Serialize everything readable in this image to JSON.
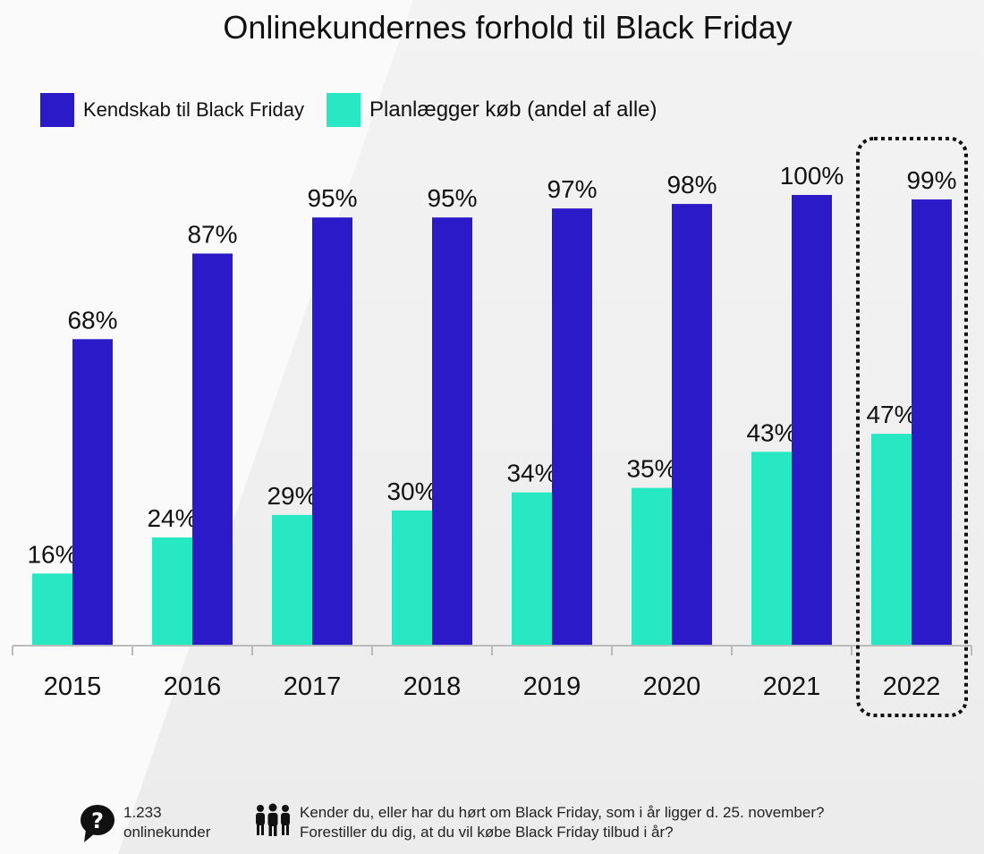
{
  "title": "Onlinekundernes forhold til Black Friday",
  "colors": {
    "series1": "#2a1ac8",
    "series2": "#27e8c2",
    "axis": "#bbbbbb",
    "highlight": "#111111"
  },
  "chart_data": {
    "type": "bar",
    "categories": [
      "2015",
      "2016",
      "2017",
      "2018",
      "2019",
      "2020",
      "2021",
      "2022"
    ],
    "series": [
      {
        "name": "Planlægger køb (andel af alle)",
        "values": [
          16,
          24,
          29,
          30,
          34,
          35,
          43,
          47
        ],
        "labels": [
          "16%",
          "24%",
          "29%",
          "30%",
          "34%",
          "35%",
          "43%",
          "47%"
        ]
      },
      {
        "name": "Kendskab til Black Friday",
        "values": [
          68,
          87,
          95,
          95,
          97,
          98,
          100,
          99
        ],
        "labels": [
          "68%",
          "87%",
          "95%",
          "95%",
          "97%",
          "98%",
          "100%",
          "99%"
        ]
      }
    ],
    "ylim": [
      0,
      100
    ],
    "highlight_category": "2022",
    "legend": [
      "Kendskab til Black Friday",
      "Planlægger køb (andel af alle)"
    ]
  },
  "footer": {
    "sample_count": "1.233",
    "sample_label": "onlinekunder",
    "question1": "Kender du, eller har du hørt om Black Friday, som i år ligger d. 25. november?",
    "question2": "Forestiller du dig, at du vil købe Black Friday tilbud i år?"
  }
}
